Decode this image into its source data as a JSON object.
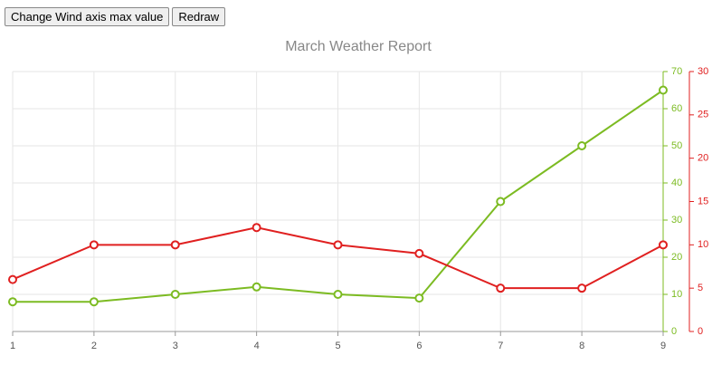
{
  "buttons": [
    "Change Wind axis max value",
    "Redraw"
  ],
  "chart_data": {
    "type": "line",
    "title": "March Weather Report",
    "x": [
      1,
      2,
      3,
      4,
      5,
      6,
      7,
      8,
      9
    ],
    "xlim": [
      1,
      9
    ],
    "xticks": [
      1,
      2,
      3,
      4,
      5,
      6,
      7,
      8,
      9
    ],
    "ylim": [
      0,
      70
    ],
    "yticks": [
      0,
      10,
      20,
      30,
      40,
      50,
      60,
      70
    ],
    "y2lim": [
      0,
      30
    ],
    "y2ticks": [
      0,
      5,
      10,
      15,
      20,
      25,
      30
    ],
    "grid": true,
    "series": [
      {
        "color": "#7cbb22",
        "values": [
          8,
          8,
          10,
          12,
          10,
          9,
          35,
          50,
          65
        ]
      },
      {
        "color": "#e02020",
        "axis": "y2",
        "values": [
          6,
          10,
          10,
          12,
          10,
          9,
          5,
          5,
          10
        ]
      }
    ]
  }
}
